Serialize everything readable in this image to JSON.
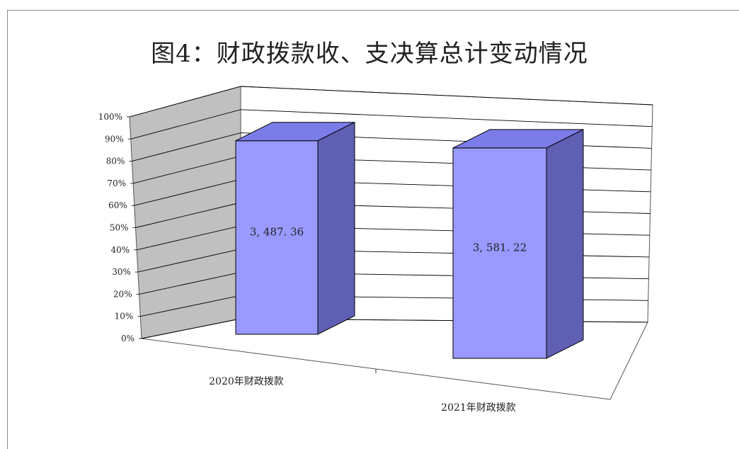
{
  "chart_data": {
    "type": "bar",
    "style": "3d-column",
    "title": "图4：财政拨款收、支决算总计变动情况",
    "categories": [
      "2020年财政拨款",
      "2021年财政拨款"
    ],
    "values": [
      3487.36,
      3581.22
    ],
    "data_labels": [
      "3, 487. 36",
      "3, 581. 22"
    ],
    "y_ticks": [
      "0%",
      "10%",
      "20%",
      "30%",
      "40%",
      "50%",
      "60%",
      "70%",
      "80%",
      "90%",
      "100%"
    ],
    "ylim": [
      0,
      3700
    ],
    "xlabel": "",
    "ylabel": "",
    "grid": true,
    "legend": "none",
    "colors": {
      "bar_front": "#9999ff",
      "bar_top": "#7c7ce8",
      "bar_side": "#5f5fb4",
      "back_wall": "#ffffff",
      "side_wall": "#c0c0c0",
      "gridline": "#000000"
    }
  }
}
